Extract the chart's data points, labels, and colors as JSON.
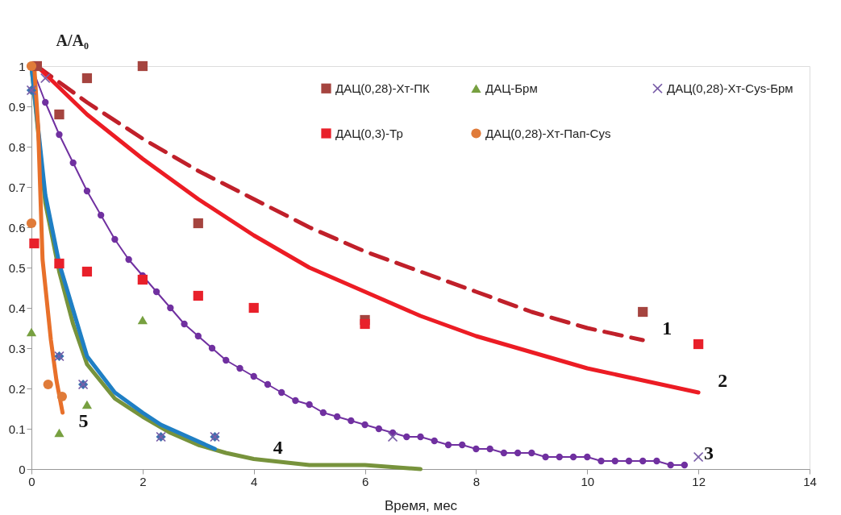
{
  "chart_data": {
    "type": "scatter",
    "ylabel": "A/A₀",
    "xlabel": "Время, мес",
    "xlim": [
      0,
      14
    ],
    "xticks": [
      0,
      2,
      4,
      6,
      8,
      10,
      12,
      14
    ],
    "ylim": [
      0,
      1
    ],
    "yticks": [
      0,
      0.1,
      0.2,
      0.3,
      0.4,
      0.5,
      0.6,
      0.7,
      0.8,
      0.9,
      1
    ],
    "grid": false,
    "legend": "top right",
    "series": [
      {
        "type": "line",
        "line_style": "dashed",
        "color": "#c0202a",
        "x": [
          0.1,
          1,
          2,
          3,
          4,
          5,
          6,
          7,
          8,
          9,
          10,
          11
        ],
        "values": [
          1,
          0.91,
          0.82,
          0.74,
          0.67,
          0.6,
          0.54,
          0.49,
          0.44,
          0.39,
          0.35,
          0.32
        ]
      },
      {
        "type": "line",
        "line_style": "solid",
        "color": "#ec1c24",
        "x": [
          0.1,
          1,
          2,
          3,
          4,
          5,
          6,
          7,
          8,
          9,
          10,
          11,
          12
        ],
        "values": [
          1,
          0.88,
          0.77,
          0.67,
          0.58,
          0.5,
          0.44,
          0.38,
          0.33,
          0.29,
          0.25,
          0.22,
          0.19
        ]
      },
      {
        "type": "line",
        "line_style": "solid",
        "marker": "circle",
        "color": "#7030a0",
        "x": [
          0,
          0.25,
          0.5,
          0.75,
          1,
          1.25,
          1.5,
          1.75,
          2,
          2.25,
          2.5,
          2.75,
          3,
          3.25,
          3.5,
          3.75,
          4,
          4.25,
          4.5,
          4.75,
          5,
          5.25,
          5.5,
          5.75,
          6,
          6.25,
          6.5,
          6.75,
          7,
          7.25,
          7.5,
          7.75,
          8,
          8.25,
          8.5,
          8.75,
          9,
          9.25,
          9.5,
          9.75,
          10,
          10.25,
          10.5,
          10.75,
          11,
          11.25,
          11.5,
          11.75
        ],
        "values": [
          1,
          0.91,
          0.83,
          0.76,
          0.69,
          0.63,
          0.57,
          0.52,
          0.48,
          0.44,
          0.4,
          0.36,
          0.33,
          0.3,
          0.27,
          0.25,
          0.23,
          0.21,
          0.19,
          0.17,
          0.16,
          0.14,
          0.13,
          0.12,
          0.11,
          0.1,
          0.09,
          0.08,
          0.08,
          0.07,
          0.06,
          0.06,
          0.05,
          0.05,
          0.04,
          0.04,
          0.04,
          0.03,
          0.03,
          0.03,
          0.03,
          0.02,
          0.02,
          0.02,
          0.02,
          0.02,
          0.01,
          0.01
        ]
      },
      {
        "type": "line",
        "line_style": "solid",
        "color": "#77933c",
        "x": [
          0,
          0.25,
          0.5,
          0.75,
          1,
          1.5,
          2,
          2.5,
          3,
          3.5,
          4,
          5,
          6,
          7
        ],
        "values": [
          1,
          0.66,
          0.49,
          0.36,
          0.26,
          0.175,
          0.13,
          0.09,
          0.06,
          0.04,
          0.025,
          0.01,
          0.01,
          0
        ]
      },
      {
        "type": "line",
        "line_style": "solid",
        "color": "#1f7fc4",
        "x": [
          0,
          0.25,
          0.5,
          1,
          1.5,
          2,
          2.33,
          3.3
        ],
        "values": [
          1,
          0.68,
          0.51,
          0.28,
          0.19,
          0.14,
          0.11,
          0.05
        ]
      },
      {
        "type": "line",
        "line_style": "solid",
        "color": "#e8702a",
        "x": [
          0.05,
          0.12,
          0.2,
          0.35,
          0.45,
          0.56
        ],
        "values": [
          1,
          0.85,
          0.52,
          0.32,
          0.22,
          0.14
        ]
      },
      {
        "marker": "diamond",
        "color": "#3f6fae",
        "x": [
          0,
          0.5,
          0.93,
          2.33,
          3.3
        ],
        "values": [
          0.94,
          0.28,
          0.21,
          0.08,
          0.08
        ]
      },
      {
        "name": "ДАЦ(0,28)-Хт-ПК",
        "marker": "square",
        "color": "#a5443f",
        "x": [
          0.1,
          0.5,
          1,
          2,
          3,
          6,
          11
        ],
        "values": [
          1,
          0.88,
          0.97,
          1,
          0.61,
          0.37,
          0.39
        ]
      },
      {
        "name": "ДАЦ-Брм",
        "marker": "triangle",
        "color": "#77a040",
        "x": [
          0,
          0.5,
          1,
          2
        ],
        "values": [
          0.34,
          0.09,
          0.16,
          0.37
        ]
      },
      {
        "name": "ДАЦ(0,28)-Хт-Cys-Брм",
        "marker": "cross",
        "color": "#7a5ea8",
        "x": [
          0,
          0.25,
          0.5,
          0.93,
          2.33,
          3.3,
          6.5,
          12
        ],
        "values": [
          0.94,
          0.97,
          0.28,
          0.21,
          0.08,
          0.08,
          0.08,
          0.03
        ]
      },
      {
        "name": "ДАЦ(0,3)-Тр",
        "marker": "square",
        "color": "#e8202a",
        "x": [
          0.05,
          0.5,
          1,
          2,
          3,
          4,
          6,
          12
        ],
        "values": [
          0.56,
          0.51,
          0.49,
          0.47,
          0.43,
          0.4,
          0.36,
          0.31
        ]
      },
      {
        "name": "ДАЦ(0,28)-Хт-Пап-Cys",
        "marker": "circle",
        "color": "#e07b39",
        "x": [
          0,
          0,
          0.3,
          0.55
        ],
        "values": [
          1,
          0.61,
          0.21,
          0.18
        ]
      }
    ],
    "annotations": [
      {
        "text": "1",
        "x": 11,
        "y": 0.32
      },
      {
        "text": "2",
        "x": 12,
        "y": 0.19
      },
      {
        "text": "3",
        "x": 11.75,
        "y": 0.01
      },
      {
        "text": "4",
        "x": 4,
        "y": 0.025
      },
      {
        "text": "5",
        "x": 0.5,
        "y": 0.09
      }
    ]
  }
}
